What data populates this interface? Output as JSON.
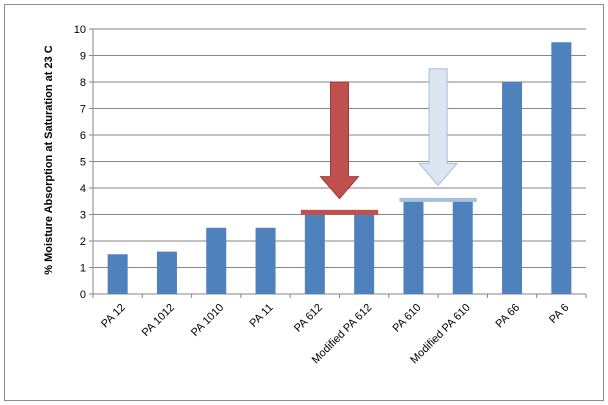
{
  "chart_data": {
    "type": "bar",
    "categories": [
      "PA 12",
      "PA 1012",
      "PA 1010",
      "PA 11",
      "PA 612",
      "Modified PA 612",
      "PA 610",
      "Modified PA 610",
      "PA 66",
      "PA 6"
    ],
    "values": [
      1.5,
      1.6,
      2.5,
      2.5,
      3.0,
      3.0,
      3.5,
      3.5,
      8.0,
      9.5
    ],
    "title": "",
    "xlabel": "",
    "ylabel": "% Moisture Absorption at Saturation at 23 C",
    "ylim": [
      0,
      10
    ],
    "yticks": [
      0,
      1,
      2,
      3,
      4,
      5,
      6,
      7,
      8,
      9,
      10
    ],
    "grid": true,
    "colors": {
      "bar": "#4f81bd",
      "red_arrow": "#c0504d",
      "light_arrow_fill": "#dce6f2",
      "light_arrow_stroke": "#a7c0de",
      "grid": "#868686"
    },
    "annotations": [
      {
        "type": "down-arrow",
        "color": "red",
        "from_y": 8.0,
        "to_y": 3.6,
        "between": [
          "PA 612",
          "Modified PA 612"
        ]
      },
      {
        "type": "level-line",
        "color": "red",
        "y": 3.1,
        "from": "PA 612",
        "to": "Modified PA 612"
      },
      {
        "type": "down-arrow",
        "color": "light-blue",
        "from_y": 8.5,
        "to_y": 4.1,
        "between": [
          "PA 610",
          "Modified PA 610"
        ]
      },
      {
        "type": "level-line",
        "color": "light-blue",
        "y": 3.55,
        "from": "PA 610",
        "to": "Modified PA 610"
      }
    ]
  }
}
